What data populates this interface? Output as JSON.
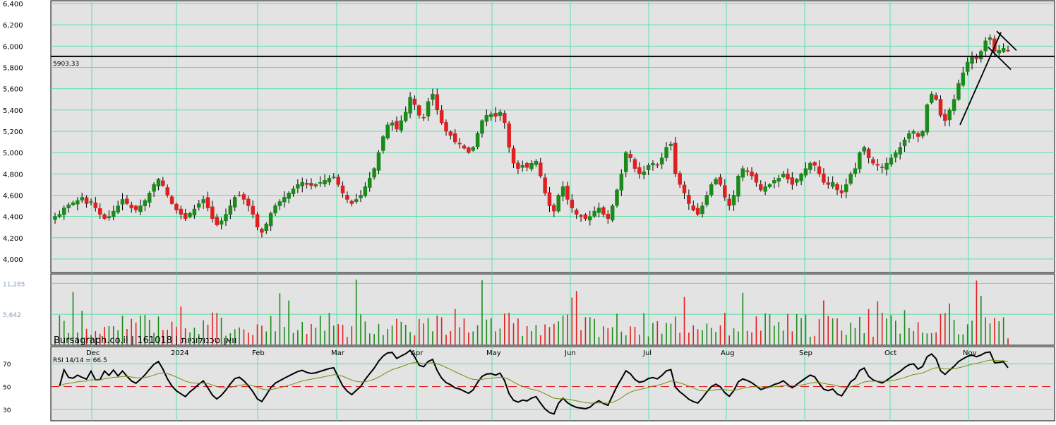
{
  "chart_data": {
    "type": "candlestick",
    "price_axis": {
      "ticks": [
        "6,400",
        "6,200",
        "6,000",
        "5,800",
        "5,600",
        "5,400",
        "5,200",
        "5,000",
        "4,800",
        "4,600",
        "4,400",
        "4,200",
        "4,000"
      ],
      "range": [
        3900,
        6400
      ]
    },
    "volume_axis": {
      "ticks": [
        "11,285",
        "5,642"
      ],
      "range": [
        0,
        13000
      ]
    },
    "rsi_axis": {
      "ticks": [
        "70",
        "50",
        "30"
      ],
      "range": [
        20,
        85
      ]
    },
    "x_labels": [
      "Dec",
      "2024",
      "Feb",
      "Mar",
      "Apr",
      "May",
      "Jun",
      "Jul",
      "Aug",
      "Sep",
      "Oct",
      "Nov"
    ],
    "reference_line_label": "5903.33",
    "reference_line_value": 5903.33,
    "watermark": "Bursagraph.co.il | 161018 | וואן טכנולוגיות",
    "rsi_label": "RSI 14/14 = 66.5",
    "rsi_last": 66.5,
    "rsi_midline": 50,
    "price_path": [
      4400,
      4420,
      4480,
      4510,
      4530,
      4550,
      4580,
      4520,
      4540,
      4480,
      4420,
      4380,
      4400,
      4450,
      4500,
      4560,
      4520,
      4480,
      4460,
      4500,
      4550,
      4620,
      4700,
      4750,
      4690,
      4600,
      4520,
      4460,
      4420,
      4380,
      4430,
      4470,
      4520,
      4560,
      4480,
      4380,
      4320,
      4360,
      4420,
      4500,
      4580,
      4600,
      4560,
      4500,
      4420,
      4300,
      4250,
      4330,
      4430,
      4500,
      4540,
      4580,
      4620,
      4660,
      4700,
      4720,
      4700,
      4690,
      4700,
      4720,
      4740,
      4760,
      4770,
      4700,
      4620,
      4560,
      4520,
      4560,
      4600,
      4680,
      4760,
      4850,
      5000,
      5150,
      5260,
      5280,
      5220,
      5300,
      5380,
      5520,
      5450,
      5350,
      5330,
      5480,
      5550,
      5400,
      5280,
      5200,
      5160,
      5100,
      5080,
      5040,
      5000,
      5050,
      5180,
      5300,
      5350,
      5360,
      5340,
      5380,
      5280,
      5050,
      4900,
      4850,
      4880,
      4860,
      4900,
      4920,
      4780,
      4620,
      4500,
      4450,
      4600,
      4680,
      4560,
      4480,
      4420,
      4400,
      4380,
      4400,
      4450,
      4480,
      4420,
      4380,
      4500,
      4650,
      4800,
      5000,
      4950,
      4850,
      4800,
      4820,
      4880,
      4900,
      4880,
      4950,
      5050,
      5080,
      4800,
      4700,
      4620,
      4520,
      4460,
      4420,
      4500,
      4600,
      4700,
      4750,
      4700,
      4580,
      4500,
      4600,
      4780,
      4850,
      4820,
      4780,
      4720,
      4650,
      4680,
      4700,
      4740,
      4760,
      4800,
      4750,
      4700,
      4750,
      4800,
      4850,
      4900,
      4880,
      4800,
      4720,
      4700,
      4720,
      4650,
      4620,
      4700,
      4800,
      4850,
      5000,
      5050,
      4950,
      4900,
      4880,
      4860,
      4900,
      4950,
      5000,
      5050,
      5120,
      5180,
      5200,
      5150,
      5200,
      5450,
      5550,
      5500,
      5350,
      5300,
      5400,
      5500,
      5650,
      5750,
      5850,
      5900,
      5880,
      5950,
      6050,
      6080,
      5950,
      5960,
      5980,
      5960
    ]
  }
}
